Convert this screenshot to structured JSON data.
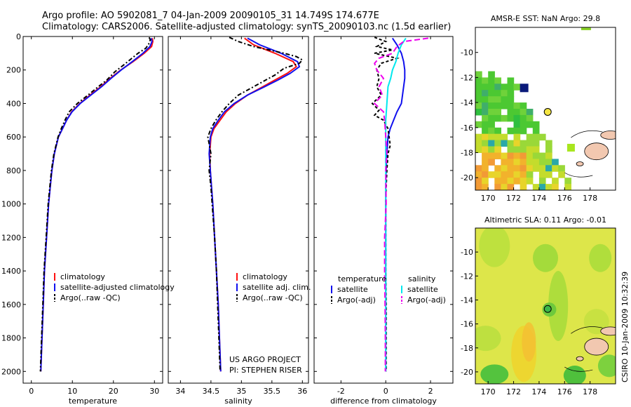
{
  "title": {
    "line1": "Argo profile: AO 5902081_7 04-Jan-2009 20090105_31 14.749S 174.677E",
    "line2": "Climatology: CARS2006. Satellite-adjusted climatology: synTS_20090103.nc (1.5d earlier)"
  },
  "side_label": "CSIRO 10-Jan-2009 10:32:39",
  "credit": {
    "line1": "US ARGO PROJECT",
    "line2": "PI: STEPHEN RISER"
  },
  "colors": {
    "climatology": "#ff1010",
    "satellite": "#1010ee",
    "argo": "#000000",
    "sat_diff": "#00e8ee",
    "argo_adj_diff": "#ee00ee",
    "float_marker": "#f5e642"
  },
  "chart_data": [
    {
      "id": "temperature",
      "type": "line",
      "xlabel": "temperature",
      "ylabel": "",
      "xlim": [
        -2,
        32
      ],
      "ylim": [
        0,
        2070
      ],
      "xticks": [
        0,
        10,
        20,
        30
      ],
      "yticks": [
        0,
        200,
        400,
        600,
        800,
        1000,
        1200,
        1400,
        1600,
        1800,
        2000
      ],
      "legend": [
        "climatology",
        "satellite-adjusted climatology",
        "Argo(..raw -QC)"
      ],
      "series": [
        {
          "name": "climatology",
          "color": "#ff1010",
          "dash": "",
          "depth": [
            10,
            30,
            60,
            100,
            150,
            200,
            250,
            300,
            350,
            400,
            450,
            500,
            550,
            600,
            700,
            800,
            900,
            1000,
            1200,
            1400,
            1600,
            1800,
            2000
          ],
          "values": [
            29.5,
            29.6,
            29.3,
            27.5,
            24.8,
            21.8,
            19.2,
            16.9,
            14.3,
            11.8,
            9.8,
            8.6,
            7.6,
            6.6,
            5.6,
            5.0,
            4.6,
            4.2,
            3.7,
            3.2,
            2.9,
            2.6,
            2.3
          ]
        },
        {
          "name": "satellite-adjusted climatology",
          "color": "#1010ee",
          "dash": "",
          "depth": [
            10,
            30,
            60,
            100,
            150,
            200,
            250,
            300,
            350,
            400,
            450,
            500,
            550,
            600,
            700,
            800,
            900,
            1000,
            1200,
            1400,
            1600,
            1800,
            2000
          ],
          "values": [
            29.2,
            29.4,
            28.9,
            27.2,
            24.6,
            21.9,
            19.4,
            17.1,
            14.5,
            11.9,
            9.9,
            8.6,
            7.6,
            6.6,
            5.6,
            5.0,
            4.6,
            4.2,
            3.7,
            3.2,
            2.9,
            2.6,
            2.3
          ]
        },
        {
          "name": "Argo(..raw -QC)",
          "color": "#000000",
          "dash": "6,3,2,3",
          "depth": [
            5,
            20,
            45,
            70,
            100,
            130,
            170,
            210,
            260,
            300,
            350,
            400,
            450,
            500,
            550,
            600,
            700,
            800,
            900,
            1000,
            1200,
            1400,
            1600,
            1800,
            2000
          ],
          "values": [
            28.7,
            29.0,
            28.6,
            27.9,
            26.0,
            24.5,
            22.5,
            20.4,
            18.4,
            16.3,
            13.8,
            11.2,
            9.2,
            8.2,
            7.3,
            6.5,
            5.5,
            4.9,
            4.5,
            4.1,
            3.6,
            3.1,
            2.8,
            2.5,
            2.2
          ]
        }
      ]
    },
    {
      "id": "salinity",
      "type": "line",
      "xlabel": "salinity",
      "ylabel": "",
      "xlim": [
        33.8,
        36.1
      ],
      "ylim": [
        0,
        2070
      ],
      "xticks": [
        34,
        34.5,
        35,
        35.5,
        36
      ],
      "yticks": [
        0,
        200,
        400,
        600,
        800,
        1000,
        1200,
        1400,
        1600,
        1800,
        2000
      ],
      "legend": [
        "climatology",
        "satellite adj. clim.",
        "Argo(..raw -QC)"
      ],
      "series": [
        {
          "name": "climatology",
          "color": "#ff1010",
          "dash": "",
          "depth": [
            10,
            50,
            100,
            150,
            180,
            220,
            260,
            300,
            350,
            400,
            450,
            500,
            550,
            600,
            700,
            800,
            900,
            1000,
            1200,
            1400,
            1600,
            1800,
            2000
          ],
          "values": [
            35.05,
            35.2,
            35.55,
            35.85,
            35.9,
            35.75,
            35.55,
            35.35,
            35.1,
            34.9,
            34.75,
            34.65,
            34.55,
            34.5,
            34.48,
            34.49,
            34.51,
            34.53,
            34.56,
            34.59,
            34.62,
            34.64,
            34.66
          ]
        },
        {
          "name": "satellite adj. clim.",
          "color": "#1010ee",
          "dash": "",
          "depth": [
            10,
            50,
            100,
            150,
            180,
            220,
            260,
            300,
            350,
            400,
            450,
            500,
            550,
            600,
            700,
            800,
            900,
            1000,
            1200,
            1400,
            1600,
            1800,
            2000
          ],
          "values": [
            35.1,
            35.3,
            35.65,
            35.92,
            35.95,
            35.8,
            35.6,
            35.38,
            35.1,
            34.88,
            34.72,
            34.62,
            34.53,
            34.49,
            34.47,
            34.49,
            34.51,
            34.53,
            34.56,
            34.59,
            34.62,
            34.64,
            34.66
          ]
        },
        {
          "name": "Argo(..raw -QC)",
          "color": "#000000",
          "dash": "6,3,2,3",
          "depth": [
            5,
            30,
            60,
            100,
            120,
            140,
            160,
            190,
            230,
            270,
            310,
            350,
            400,
            450,
            500,
            550,
            600,
            700,
            800,
            900,
            1000,
            1200,
            1400,
            1600,
            1800,
            2000
          ],
          "values": [
            34.8,
            34.95,
            35.2,
            35.7,
            35.9,
            36.0,
            35.95,
            35.7,
            35.55,
            35.35,
            35.15,
            34.95,
            34.8,
            34.68,
            34.58,
            34.5,
            34.45,
            34.5,
            34.47,
            34.5,
            34.52,
            34.56,
            34.59,
            34.61,
            34.63,
            34.65
          ]
        }
      ]
    },
    {
      "id": "difference",
      "type": "line",
      "xlabel": "difference from climatology",
      "ylabel": "",
      "xlim": [
        -3.2,
        3.0
      ],
      "ylim": [
        0,
        2070
      ],
      "xticks": [
        -2,
        0,
        2
      ],
      "yticks": [
        0,
        200,
        400,
        600,
        800,
        1000,
        1200,
        1400,
        1600,
        1800,
        2000
      ],
      "legend_groups": [
        {
          "heading": "temperature",
          "items": [
            "satellite",
            "Argo(-adj)"
          ]
        },
        {
          "heading": "salinity",
          "items": [
            "satellite",
            "Argo(-adj)"
          ]
        }
      ],
      "series": [
        {
          "name": "temperature satellite",
          "color": "#1010ee",
          "dash": "",
          "depth": [
            10,
            50,
            100,
            150,
            200,
            250,
            300,
            350,
            400,
            450,
            500,
            550,
            600,
            700,
            800,
            900,
            1000,
            1200,
            1400,
            1600,
            1800,
            2000
          ],
          "values": [
            0.3,
            0.5,
            0.7,
            0.8,
            0.85,
            0.85,
            0.8,
            0.75,
            0.7,
            0.5,
            0.35,
            0.2,
            0.1,
            0.05,
            0.02,
            0.0,
            0.0,
            0.0,
            0.0,
            0.0,
            0.0,
            0.0
          ]
        },
        {
          "name": "temperature Argo(-adj)",
          "color": "#000000",
          "dash": "4,3",
          "depth": [
            5,
            30,
            60,
            80,
            100,
            130,
            160,
            200,
            250,
            300,
            350,
            400,
            440,
            470,
            500,
            550,
            600,
            650,
            700,
            800,
            900,
            1000,
            1200,
            1400,
            1600,
            1800,
            2000
          ],
          "values": [
            -0.5,
            0.0,
            -0.4,
            0.3,
            -0.5,
            0.5,
            -0.2,
            -0.4,
            -0.3,
            -0.4,
            -0.2,
            -0.6,
            -0.3,
            -0.5,
            -0.1,
            0.1,
            0.15,
            0.2,
            0.1,
            0.05,
            0.02,
            0.0,
            0.0,
            0.0,
            0.02,
            0.02,
            0.02
          ]
        },
        {
          "name": "salinity satellite",
          "color": "#00e8ee",
          "dash": "",
          "depth": [
            10,
            50,
            100,
            150,
            200,
            250,
            300,
            400,
            500,
            600,
            700,
            800,
            1000,
            1200,
            1400,
            1600,
            1800,
            2000
          ],
          "values": [
            0.9,
            0.7,
            0.55,
            0.45,
            0.3,
            0.22,
            0.1,
            0.05,
            0.0,
            0.0,
            0.0,
            0.0,
            0.0,
            0.0,
            0.0,
            0.0,
            0.0,
            0.0
          ]
        },
        {
          "name": "salinity Argo(-adj)",
          "color": "#ee00ee",
          "dash": "8,4",
          "depth": [
            10,
            30,
            60,
            100,
            130,
            160,
            200,
            250,
            300,
            350,
            400,
            450,
            500,
            600,
            700,
            800,
            1000,
            1200,
            1400,
            1600,
            1800,
            2000
          ],
          "values": [
            1.9,
            0.8,
            0.5,
            0.3,
            -0.3,
            -0.5,
            -0.4,
            -0.1,
            -0.3,
            -0.15,
            -0.5,
            -0.1,
            -0.05,
            0.0,
            0.05,
            0.0,
            0.02,
            -0.05,
            -0.05,
            -0.03,
            -0.02,
            -0.02
          ]
        }
      ]
    },
    {
      "id": "sst_map",
      "type": "heatmap",
      "title": "AMSR-E SST: NaN Argo: 29.8",
      "xlim": [
        169,
        180
      ],
      "ylim": [
        -21,
        -8
      ],
      "xticks": [
        170,
        172,
        174,
        176,
        178
      ],
      "yticks": [
        -10,
        -12,
        -14,
        -16,
        -18,
        -20
      ],
      "float_position": {
        "lon": 174.677,
        "lat": -14.749
      }
    },
    {
      "id": "sla_map",
      "type": "heatmap",
      "title": "Altimetric SLA: 0.11 Argo: -0.01",
      "xlim": [
        169,
        180
      ],
      "ylim": [
        -21,
        -8
      ],
      "xticks": [
        170,
        172,
        174,
        176,
        178
      ],
      "yticks": [
        -10,
        -12,
        -14,
        -16,
        -18,
        -20
      ],
      "float_position": {
        "lon": 174.677,
        "lat": -14.749
      }
    }
  ]
}
